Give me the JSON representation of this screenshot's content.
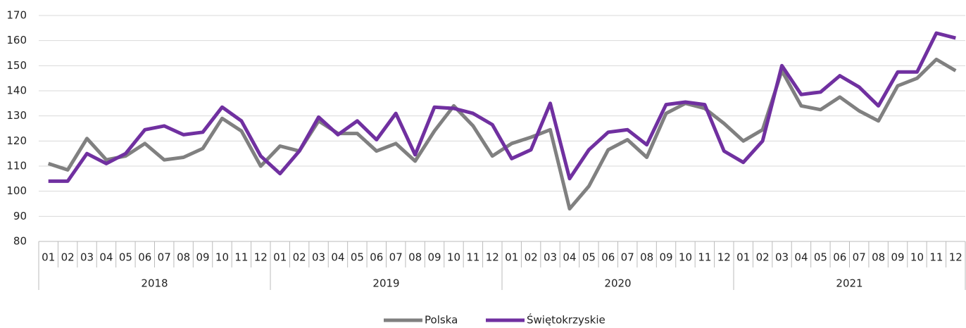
{
  "chart_data": {
    "type": "line",
    "categories": [
      "01",
      "02",
      "03",
      "04",
      "05",
      "06",
      "07",
      "08",
      "09",
      "10",
      "11",
      "12",
      "01",
      "02",
      "03",
      "04",
      "05",
      "06",
      "07",
      "08",
      "09",
      "10",
      "11",
      "12",
      "01",
      "02",
      "03",
      "04",
      "05",
      "06",
      "07",
      "08",
      "09",
      "10",
      "11",
      "12",
      "01",
      "02",
      "03",
      "04",
      "05",
      "06",
      "07",
      "08",
      "09",
      "10",
      "11",
      "12"
    ],
    "years": [
      "2018",
      "2019",
      "2020",
      "2021"
    ],
    "series": [
      {
        "name": "Polska",
        "color": "#808080",
        "values": [
          111,
          108.5,
          121,
          112.5,
          114,
          119,
          112.5,
          113.5,
          117,
          129,
          124,
          110,
          118,
          116,
          128,
          123,
          123,
          116,
          119,
          112,
          124,
          134,
          126,
          114,
          119,
          121.5,
          124.5,
          93,
          102,
          116.5,
          120.5,
          113.5,
          131,
          135,
          133,
          127,
          120,
          124.5,
          148,
          134,
          132.5,
          137.5,
          132,
          128,
          142,
          145,
          152.5,
          148
        ]
      },
      {
        "name": "Świętokrzyskie",
        "color": "#7030a0",
        "values": [
          104,
          104,
          115,
          111,
          115,
          124.5,
          126,
          122.5,
          123.5,
          133.5,
          128,
          114,
          107,
          116,
          129.5,
          122.5,
          128,
          120.5,
          131,
          114.5,
          133.5,
          133,
          131,
          126.5,
          113,
          116.5,
          135,
          105,
          116.5,
          123.5,
          124.5,
          118.5,
          134.5,
          135.5,
          134.5,
          116,
          111.5,
          120,
          150,
          138.5,
          139.5,
          146,
          141.5,
          134,
          147.5,
          147.5,
          163,
          161
        ]
      }
    ],
    "ylim": [
      80,
      170
    ],
    "yticks": [
      80,
      90,
      100,
      110,
      120,
      130,
      140,
      150,
      160,
      170
    ],
    "grid": true,
    "legend": "bottom"
  }
}
